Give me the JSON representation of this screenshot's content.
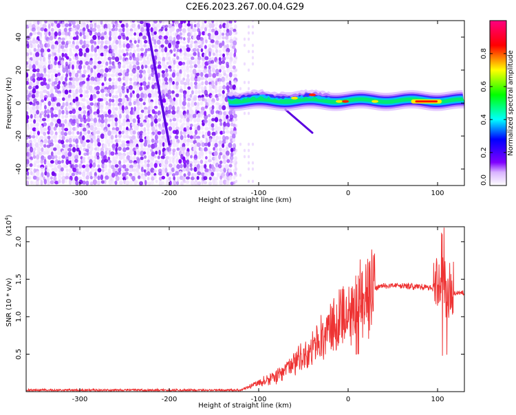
{
  "title": "C2E6.2023.267.00.04.G29",
  "chart_data": [
    {
      "type": "heatmap",
      "xlabel": "Height of straight line (km)",
      "ylabel": "Frequency (Hz)",
      "xlim": [
        -360,
        130
      ],
      "ylim": [
        -50,
        50
      ],
      "xticks": [
        -300,
        -200,
        -100,
        0,
        100
      ],
      "yticks": [
        -40,
        -20,
        0,
        20,
        40
      ],
      "colorbar": {
        "label": "Normalized spectral amplitude",
        "range": [
          0,
          1
        ],
        "ticks": [
          "0.0",
          "0.2",
          "0.4",
          "0.6",
          "0.8"
        ],
        "tick_values": [
          0,
          0.2,
          0.4,
          0.6,
          0.8
        ],
        "colors": [
          "#ffffff",
          "#7f00ff",
          "#0000ff",
          "#00ffff",
          "#00ff00",
          "#ffff00",
          "#ff0000",
          "#ff0080"
        ]
      },
      "regions": {
        "noise_x_range": [
          -360,
          -125
        ],
        "noise_frequency_range": [
          -50,
          50
        ],
        "signal_x_range": [
          -135,
          130
        ],
        "signal_center_frequency_hz": 1.5,
        "signal_peak_x_range": [
          75,
          100
        ],
        "signal_peak_frequency_hz": 1
      },
      "streaks": [
        {
          "from": [
            -225,
            48
          ],
          "to": [
            -200,
            -25
          ]
        },
        {
          "from": [
            -70,
            -4
          ],
          "to": [
            -40,
            -18
          ]
        }
      ]
    },
    {
      "type": "line",
      "xlabel": "Height of straight line (km)",
      "ylabel": "SNR (10 * v/v)",
      "multiplier_label": "(x10",
      "multiplier_exp": "4",
      "multiplier_close": ")",
      "xlim": [
        -360,
        130
      ],
      "ylim": [
        0,
        2.2
      ],
      "xticks": [
        -300,
        -200,
        -100,
        0,
        100
      ],
      "yticks": [
        "0.5",
        "1.0",
        "1.5",
        "2.0"
      ],
      "ytick_values": [
        0.5,
        1.0,
        1.5,
        2.0
      ],
      "color": "#ee3333",
      "envelope": {
        "x": [
          -360,
          -120,
          -100,
          -80,
          -60,
          -40,
          -20,
          -10,
          0,
          10,
          20,
          30,
          40,
          60,
          80,
          95,
          105,
          110,
          115,
          120,
          130
        ],
        "y": [
          0.02,
          0.02,
          0.12,
          0.2,
          0.4,
          0.55,
          0.8,
          0.95,
          1.05,
          1.2,
          1.3,
          1.38,
          1.42,
          1.41,
          1.4,
          1.38,
          1.4,
          1.3,
          1.32,
          1.32,
          1.32
        ]
      }
    }
  ]
}
